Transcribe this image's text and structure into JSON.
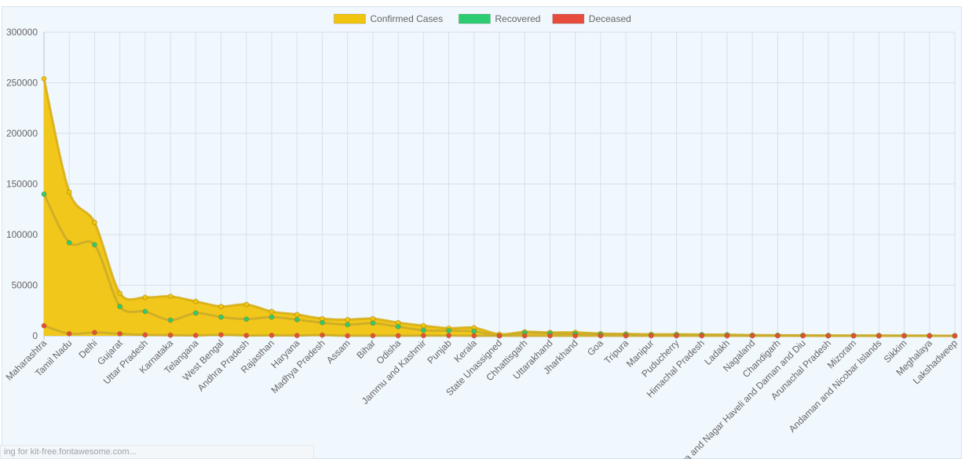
{
  "status_text": "ing for kit-free.fontawesome.com...",
  "chart_data": {
    "type": "area",
    "title": "",
    "xlabel": "",
    "ylabel": "",
    "ylim": [
      0,
      300000
    ],
    "y_ticks": [
      0,
      50000,
      100000,
      150000,
      200000,
      250000,
      300000
    ],
    "grid": true,
    "legend_position": "top-center",
    "categories": [
      "Maharashtra",
      "Tamil Nadu",
      "Delhi",
      "Gujarat",
      "Uttar Pradesh",
      "Karnataka",
      "Telangana",
      "West Bengal",
      "Andhra Pradesh",
      "Rajasthan",
      "Haryana",
      "Madhya Pradesh",
      "Assam",
      "Bihar",
      "Odisha",
      "Jammu and Kashmir",
      "Punjab",
      "Kerala",
      "State Unassigned",
      "Chhattisgarh",
      "Uttarakhand",
      "Jharkhand",
      "Goa",
      "Tripura",
      "Manipur",
      "Puducherry",
      "Himachal Pradesh",
      "Ladakh",
      "Nagaland",
      "Chandigarh",
      "Dadra and Nagar Haveli and Daman and Diu",
      "Arunachal Pradesh",
      "Mizoram",
      "Andaman and Nicobar Islands",
      "Sikkim",
      "Meghalaya",
      "Lakshadweep"
    ],
    "series": [
      {
        "name": "Confirmed Cases",
        "color": "#f1c40f",
        "values": [
          254000,
          142000,
          112000,
          42000,
          38000,
          39000,
          34000,
          29000,
          31000,
          24000,
          21000,
          17000,
          16000,
          17000,
          13000,
          10000,
          7500,
          8000,
          1500,
          3900,
          3300,
          3400,
          2200,
          1900,
          1500,
          1500,
          1200,
          1100,
          700,
          500,
          500,
          300,
          230,
          200,
          150,
          80,
          0
        ]
      },
      {
        "name": "Recovered",
        "color": "#2ecc71",
        "values": [
          140000,
          92000,
          90000,
          29000,
          24000,
          15500,
          22500,
          18500,
          16500,
          18500,
          16000,
          13000,
          11000,
          12500,
          9000,
          5500,
          5000,
          4500,
          0,
          3000,
          2500,
          2000,
          1500,
          1200,
          800,
          1000,
          900,
          800,
          300,
          400,
          350,
          150,
          150,
          150,
          80,
          50,
          0
        ]
      },
      {
        "name": "Deceased",
        "color": "#e74c3c",
        "values": [
          10000,
          2000,
          3300,
          2000,
          900,
          600,
          350,
          1000,
          300,
          500,
          300,
          650,
          40,
          100,
          80,
          150,
          190,
          30,
          0,
          15,
          45,
          20,
          5,
          2,
          0,
          15,
          10,
          1,
          0,
          6,
          2,
          2,
          0,
          0,
          0,
          1,
          0
        ]
      }
    ]
  }
}
